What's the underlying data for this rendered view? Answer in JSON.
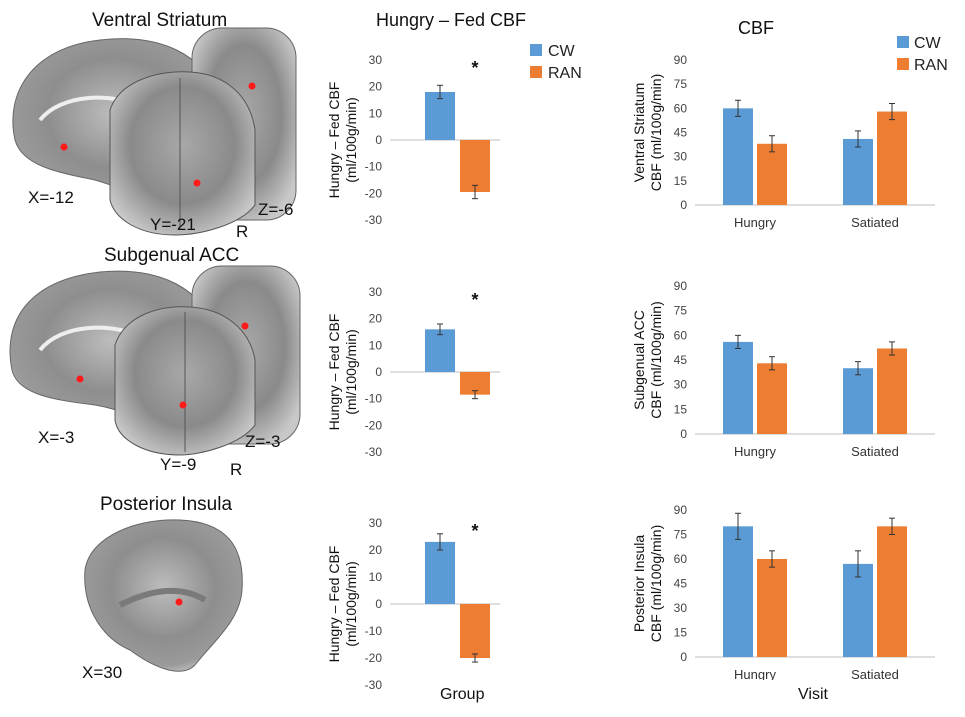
{
  "headers": {
    "diff_title": "Hungry – Fed CBF",
    "cbf_title": "CBF",
    "diff_xlabel": "Group",
    "cbf_xlabel": "Visit"
  },
  "legend": [
    {
      "name": "CW",
      "color": "#5B9BD5"
    },
    {
      "name": "RAN",
      "color": "#ED7D31"
    }
  ],
  "rows": [
    {
      "region": "Ventral Striatum",
      "coords": {
        "x": "X=-12",
        "y": "Y=-21",
        "z": "Z=-6",
        "r": "R"
      },
      "has_coronal": true
    },
    {
      "region": "Subgenual ACC",
      "coords": {
        "x": "X=-3",
        "y": "Y=-9",
        "z": "Z=-3",
        "r": "R"
      },
      "has_coronal": true
    },
    {
      "region": "Posterior Insula",
      "coords": {
        "x": "X=30"
      },
      "has_coronal": false
    }
  ],
  "chart_data": [
    {
      "type": "bar",
      "id": "diff-ventral-striatum",
      "title": "",
      "xlabel": "",
      "ylabel": [
        "Hungry – Fed CBF",
        "(ml/100g/min)"
      ],
      "ylim": [
        -30,
        30
      ],
      "yticks": [
        -30,
        -20,
        -10,
        0,
        10,
        20,
        30
      ],
      "series": [
        {
          "name": "CW",
          "value": 18,
          "err": 2.5
        },
        {
          "name": "RAN",
          "value": -19.5,
          "err": 2.5
        }
      ],
      "annotation": "*",
      "legend": true
    },
    {
      "type": "bar",
      "id": "diff-subgenual-acc",
      "title": "",
      "xlabel": "",
      "ylabel": [
        "Hungry – Fed CBF",
        "(ml/100g/min)"
      ],
      "ylim": [
        -30,
        30
      ],
      "yticks": [
        -30,
        -20,
        -10,
        0,
        10,
        20,
        30
      ],
      "series": [
        {
          "name": "CW",
          "value": 16,
          "err": 2
        },
        {
          "name": "RAN",
          "value": -8.5,
          "err": 1.5
        }
      ],
      "annotation": "*",
      "legend": false
    },
    {
      "type": "bar",
      "id": "diff-posterior-insula",
      "title": "",
      "xlabel": "",
      "ylabel": [
        "Hungry – Fed CBF",
        "(ml/100g/min)"
      ],
      "ylim": [
        -30,
        30
      ],
      "yticks": [
        -30,
        -20,
        -10,
        0,
        10,
        20,
        30
      ],
      "series": [
        {
          "name": "CW",
          "value": 23,
          "err": 3
        },
        {
          "name": "RAN",
          "value": -20,
          "err": 1.5
        }
      ],
      "annotation": "*",
      "legend": false
    },
    {
      "type": "bar",
      "id": "cbf-ventral-striatum",
      "title": "",
      "xlabel": "",
      "ylabel": [
        "Ventral Striatum",
        "CBF (ml/100g/min)"
      ],
      "ylim": [
        0,
        90
      ],
      "yticks": [
        0,
        15,
        30,
        45,
        60,
        75,
        90
      ],
      "categories": [
        "Hungry",
        "Satiated"
      ],
      "series": [
        {
          "name": "CW",
          "values": [
            60,
            41
          ],
          "err": [
            5,
            5
          ]
        },
        {
          "name": "RAN",
          "values": [
            38,
            58
          ],
          "err": [
            5,
            5
          ]
        }
      ],
      "legend": true
    },
    {
      "type": "bar",
      "id": "cbf-subgenual-acc",
      "title": "",
      "xlabel": "",
      "ylabel": [
        "Subgenual ACC",
        "CBF (ml/100g/min)"
      ],
      "ylim": [
        0,
        90
      ],
      "yticks": [
        0,
        15,
        30,
        45,
        60,
        75,
        90
      ],
      "categories": [
        "Hungry",
        "Satiated"
      ],
      "series": [
        {
          "name": "CW",
          "values": [
            56,
            40
          ],
          "err": [
            4,
            4
          ]
        },
        {
          "name": "RAN",
          "values": [
            43,
            52
          ],
          "err": [
            4,
            4
          ]
        }
      ],
      "legend": false
    },
    {
      "type": "bar",
      "id": "cbf-posterior-insula",
      "title": "",
      "xlabel": "",
      "ylabel": [
        "Posterior Insula",
        "CBF (ml/100g/min)"
      ],
      "ylim": [
        0,
        90
      ],
      "yticks": [
        0,
        15,
        30,
        45,
        60,
        75,
        90
      ],
      "categories": [
        "Hungry",
        "Satiated"
      ],
      "series": [
        {
          "name": "CW",
          "values": [
            80,
            57
          ],
          "err": [
            8,
            8
          ]
        },
        {
          "name": "RAN",
          "values": [
            60,
            80
          ],
          "err": [
            5,
            5
          ]
        }
      ],
      "legend": false
    }
  ]
}
